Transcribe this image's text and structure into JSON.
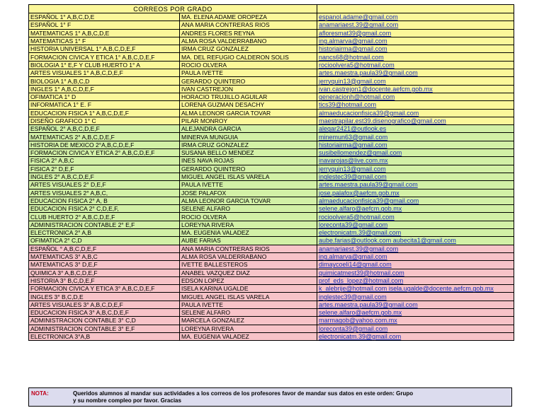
{
  "title": "CORREOS POR GRADO",
  "colors": {
    "first_grade": "#fbf79a",
    "second_grade": "#d2f0a6",
    "third_grade": "#f7c3c8",
    "note_bg": "#dcdcee",
    "link": "#1a2fb8"
  },
  "rows": [
    {
      "g": "y",
      "subject": "ESPAÑOL  1° A,B,C,D,E",
      "teacher": "MA. ELENA ADAME OROPEZA",
      "email": "espanol.adame@gmail.com"
    },
    {
      "g": "y",
      "subject": "ESPAÑOL   1° F",
      "teacher": "ANA MARIA CONTRERAS RIOS",
      "email": "anamariaest.39@gmail.com"
    },
    {
      "g": "y",
      "subject": "MATEMATICAS 1° A,B,C,D,E",
      "teacher": "ANDRES FLORES REYNA",
      "email": "afloresmat39@gmail.com"
    },
    {
      "g": "y",
      "subject": "MATEMATICAS   1° F",
      "teacher": "ALMA ROSA VALDERRABANO",
      "email": "ing.almarva@gmail.com"
    },
    {
      "g": "y",
      "subject": "HISTORIA UNIVERSAL  1° A,B,C,D,E,F",
      "teacher": "IRMA CRUZ GONZALEZ",
      "email": "historiairma@gmail.com"
    },
    {
      "g": "y",
      "subject": "FORMACION CIVICA Y ETICA  1° A,B,C,D,E,F",
      "teacher": "MA. DEL REFUGIO CALDERON SOLIS",
      "email": "nancs68@hotmail.com"
    },
    {
      "g": "y",
      "subject": "BIOLOGIA 1° E,F  Y   CLUB HUERTO  1° A",
      "teacher": "ROCIO OLVERA",
      "email": "rocioolvera5@hotmail.com"
    },
    {
      "g": "y",
      "subject": "ARTES VISUALES  1° A,B,C,D,E,F",
      "teacher": "PAULA IVETTE",
      "email": "artes.maestra.paula39@gmail.com"
    },
    {
      "g": "y",
      "subject": "BIOLOGIA  1° A,B,C,D",
      "teacher": "GERARDO QUINTERO",
      "email": "jerryquin13@gmail.com"
    },
    {
      "g": "y",
      "subject": "INGLES 1° A,B,C,D,E,F",
      "teacher": "IVAN CASTREJON",
      "email": "ivan.castrejon1@docente.aefcm.gob.mx"
    },
    {
      "g": "y",
      "subject": "OFIMATICA  1° D",
      "teacher": "HORACIO TRUJILLO AGUILAR",
      "email": "generacionh@hotmail.com"
    },
    {
      "g": "y",
      "subject": "INFORMATICA   1° E. F",
      "teacher": "LORENA GUZMAN DESACHY",
      "email": "tics39@hotmail.com"
    },
    {
      "g": "y",
      "subject": "EDUCACION FISICA  1° A,B,C,D,E,F",
      "teacher": "ALMA LEONOR GARCIA TOVAR",
      "email": "almaeducacionfisica39@gmail.com"
    },
    {
      "g": "y",
      "subject": "DISEÑO GRAFICO 1° C",
      "teacher": "PILAR MONROY",
      "email": "maestrapilar.est39.disenografico@gmail.com"
    },
    {
      "g": "g",
      "subject": "ESPAÑOL   2° A,B,C,D,E,F",
      "teacher": "ALEJANDRA GARCIA",
      "email": "alegar2421@outlook.es"
    },
    {
      "g": "g",
      "subject": "MATEMATICAS   2° A,B,C,D,E,F",
      "teacher": "MINERVA MUNGUIA",
      "email": "minemun63@gmail.com"
    },
    {
      "g": "g",
      "subject": "HISTORIA DE MEXICO  2°A,B,C,D,E,F",
      "teacher": "IRMA CRUZ GONZALEZ",
      "email": "historiairma@gmail.com"
    },
    {
      "g": "g",
      "subject": "FORMACION CIVICA Y ETICA   2° A,B,C,D,E,F",
      "teacher": "SUSANA BELLO MENDEZ",
      "email": "susibellomendez@gmail.com"
    },
    {
      "g": "g",
      "subject": "FISICA 2°  A,B,C",
      "teacher": "INES NAVA ROJAS",
      "email": "inavarojas@live.com.mx"
    },
    {
      "g": "g",
      "subject": "FISICA 2°  D,E,F",
      "teacher": "GERARDO QUINTERO",
      "email": "jerryquin13@gmail.com"
    },
    {
      "g": "g",
      "subject": "INGLES  2° A,B,C,D,E,F",
      "teacher": "MIGUEL ANGEL ISLAS VARELA",
      "email": "inglestec39@gmail.com"
    },
    {
      "g": "g",
      "subject": "ARTES VISUALES   2° D,E,F",
      "teacher": "PAULA IVETTE",
      "email": "artes.maestra.paula39@gmail.com"
    },
    {
      "g": "g",
      "subject": "ARTES VISUALES   2° A,B,C,",
      "teacher": "JOSE PALAFOX",
      "email": "jose.palafox@aefcm.gob.mx"
    },
    {
      "g": "g",
      "subject": "EDUCACION FISICA   2°  A, B",
      "teacher": "ALMA LEONOR GARCIA TOVAR",
      "email": "almaeducacionfisica39@gmail.com"
    },
    {
      "g": "g",
      "subject": "EDUCACION FISICA   2°  C,D,E,F,",
      "teacher": "SELENE ALFARO",
      "email": "selene.alfaro@aefcm.gob.mx"
    },
    {
      "g": "g",
      "subject": "CLUB HUERTO  2° A,B,C,D,E,F",
      "teacher": "ROCIO OLVERA",
      "email": "rocioolvera5@hotmail.com"
    },
    {
      "g": "g",
      "subject": "ADMINISTRACION CONTABLE  2° E,F",
      "teacher": "LOREYNA RIVERA",
      "email": "loreconta39@gmail.com"
    },
    {
      "g": "g",
      "subject": "ELECTRONICA   2° A,B",
      "teacher": "MA. EUGENIA VALADEZ",
      "email": "electronicatm.39@gmail.com"
    },
    {
      "g": "g",
      "subject": "OFIMATICA   2° C,D",
      "teacher": "AUBE FARIAS",
      "email": "aube.farias@outlook.com   aubecita1@gmail.com"
    },
    {
      "g": "p",
      "subject": "ESPAÑOL  ° A,B,C,D,E,F",
      "teacher": "ANA MARIA CONTRERAS RIOS",
      "email": "anamariaest.39@gmail.com"
    },
    {
      "g": "p",
      "subject": "MATEMATICAS   3° A,B,C",
      "teacher": "ALMA ROSA VALDERRABANO",
      "email": "ing.almarva@gmail.com"
    },
    {
      "g": "p",
      "subject": "MATEMATICAS   3° D,E,F",
      "teacher": "IVETTE BALLESTEROS",
      "email": "dimaycoeli14@gmail.com"
    },
    {
      "g": "p",
      "subject": "QUIMICA  3° A,B,C,D,E,F",
      "teacher": "ANABEL VAZQUEZ DIAZ",
      "email": "quimicatmest39@hotmail.com"
    },
    {
      "g": "p",
      "subject": "HISTORIA  3° B,C,D,E,F",
      "teacher": "EDSON LOPEZ",
      "email": "prof_eds_lopez@hotmail.com"
    },
    {
      "g": "p",
      "subject": "FORMACION CIVICA Y ETICA  3° A,B,C,D,E,F",
      "teacher": "ISELA KARINA UGALDE",
      "email": "k_alebrije@hotmail.com  isela.ugalde@docente.aefcm.gob.mx"
    },
    {
      "g": "p",
      "subject": "INGLES   3° B,C,D,E",
      "teacher": "MIGUEL ANGEL ISLAS VARELA",
      "email": "inglestec39@gmail.com"
    },
    {
      "g": "p",
      "subject": "ARTES VISUALES  3° A,B,C,D,E,F",
      "teacher": "PAULA IVETTE",
      "email": "artes.maestra.paula39@gmail.com"
    },
    {
      "g": "p",
      "subject": "EDUCACION FISICA   3° A,B,C,D,E,F",
      "teacher": "SELENE ALFARO",
      "email": "selene.alfaro@aefcm.gob.mx"
    },
    {
      "g": "p",
      "subject": "ADMINISTRACION CONTABLE   3° C,D",
      "teacher": "MARCELA GONZALEZ",
      "email": "marmagob@yahoo.com.mx"
    },
    {
      "g": "p",
      "subject": "ADMINISTRACION CONTABLE   3° E,F",
      "teacher": "LOREYNA RIVERA",
      "email": "loreconta39@gmail.com"
    },
    {
      "g": "p",
      "subject": "ELECTRONICA   3°A,B",
      "teacher": "MA. EUGENIA VALADEZ",
      "email": "electronicatm.39@gmail.com"
    }
  ],
  "note": {
    "label": "NOTA:",
    "text": "Queridos alumnos al mandar sus actividades a los correos de los profesores favor de mandar sus datos en este orden:    Grupo\n    y su nombre compleo por favor.   Gracias"
  }
}
